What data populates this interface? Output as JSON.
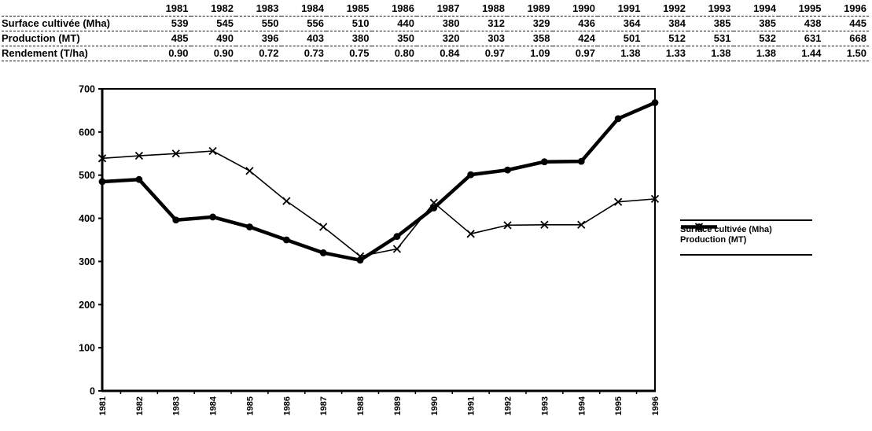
{
  "table": {
    "corner_label": "",
    "years": [
      "1981",
      "1982",
      "1983",
      "1984",
      "1985",
      "1986",
      "1987",
      "1988",
      "1989",
      "1990",
      "1991",
      "1992",
      "1993",
      "1994",
      "1995",
      "1996"
    ],
    "rows": [
      {
        "label": "Surface cultivée (Mha)",
        "values": [
          "539",
          "545",
          "550",
          "556",
          "510",
          "440",
          "380",
          "312",
          "329",
          "436",
          "364",
          "384",
          "385",
          "385",
          "438",
          "445"
        ]
      },
      {
        "label": "Production (MT)",
        "values": [
          "485",
          "490",
          "396",
          "403",
          "380",
          "350",
          "320",
          "303",
          "358",
          "424",
          "501",
          "512",
          "531",
          "532",
          "631",
          "668"
        ]
      },
      {
        "label": "Rendement (T/ha)",
        "values": [
          "0.90",
          "0.90",
          "0.72",
          "0.73",
          "0.75",
          "0.80",
          "0.84",
          "0.97",
          "1.09",
          "0.97",
          "1.38",
          "1.33",
          "1.38",
          "1.38",
          "1.44",
          "1.50"
        ]
      }
    ]
  },
  "chart_data": {
    "type": "line",
    "title": "",
    "xlabel": "",
    "ylabel": "",
    "categories": [
      "1981",
      "1982",
      "1983",
      "1984",
      "1985",
      "1986",
      "1987",
      "1988",
      "1989",
      "1990",
      "1991",
      "1992",
      "1993",
      "1994",
      "1995",
      "1996"
    ],
    "series": [
      {
        "name": "Surface cultivée (Mha)",
        "values": [
          539,
          545,
          550,
          556,
          510,
          440,
          380,
          312,
          329,
          436,
          364,
          384,
          385,
          385,
          438,
          445
        ],
        "marker": "x",
        "line": "thin"
      },
      {
        "name": "Production (MT)",
        "values": [
          485,
          490,
          396,
          403,
          380,
          350,
          320,
          303,
          358,
          424,
          501,
          512,
          531,
          532,
          631,
          668
        ],
        "marker": "dot",
        "line": "thick"
      }
    ],
    "ylim": [
      0,
      700
    ],
    "yticks": [
      "0",
      "100",
      "200",
      "300",
      "400",
      "500",
      "600",
      "700"
    ],
    "grid": false,
    "legend_position": "right",
    "line_color": "#000000",
    "axis_color": "#000000",
    "background_color": "#ffffff"
  }
}
